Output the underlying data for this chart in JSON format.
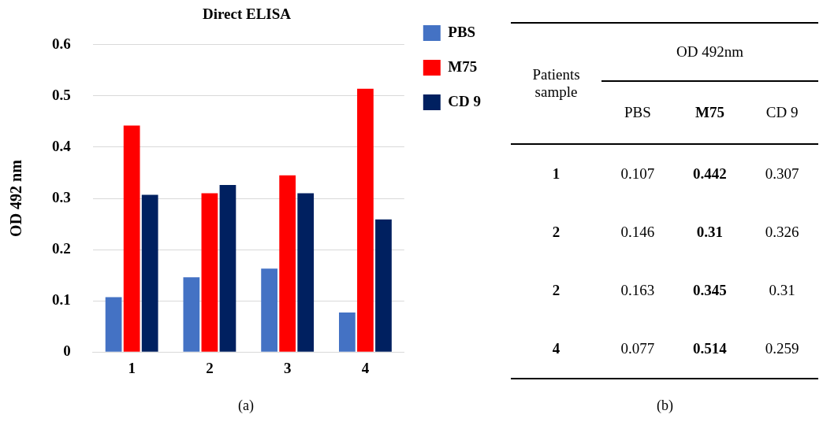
{
  "chart_data": [
    {
      "type": "bar",
      "title": "Direct ELISA",
      "ylabel": "OD 492 nm",
      "categories": [
        "1",
        "2",
        "3",
        "4"
      ],
      "series": [
        {
          "name": "PBS",
          "color": "#4472c4",
          "values": [
            0.107,
            0.146,
            0.163,
            0.077
          ]
        },
        {
          "name": "M75",
          "color": "#ff0000",
          "values": [
            0.442,
            0.31,
            0.345,
            0.514
          ]
        },
        {
          "name": "CD 9",
          "color": "#002060",
          "values": [
            0.307,
            0.326,
            0.31,
            0.259
          ]
        }
      ],
      "ylim": [
        0,
        0.6
      ],
      "yticks": [
        {
          "value": 0,
          "label": "0"
        },
        0.1,
        0.2,
        0.3,
        0.4,
        0.5,
        0.6
      ],
      "grid": "y",
      "legend": "top right",
      "annotations": [
        "(a)"
      ]
    },
    {
      "type": "other",
      "title": "OD 492nm",
      "ylabel": "Patients sample",
      "categories": [
        "1",
        "2",
        "2",
        "4"
      ],
      "series": [
        {
          "name": "PBS",
          "values": [
            0.107,
            0.146,
            0.163,
            0.077
          ]
        },
        {
          "name": "M75",
          "values": [
            0.442,
            0.31,
            0.345,
            0.514
          ]
        },
        {
          "name": "CD 9",
          "values": [
            0.307,
            0.326,
            0.31,
            0.259
          ]
        }
      ],
      "data_labels": true,
      "annotations": [
        "(b)"
      ]
    }
  ]
}
